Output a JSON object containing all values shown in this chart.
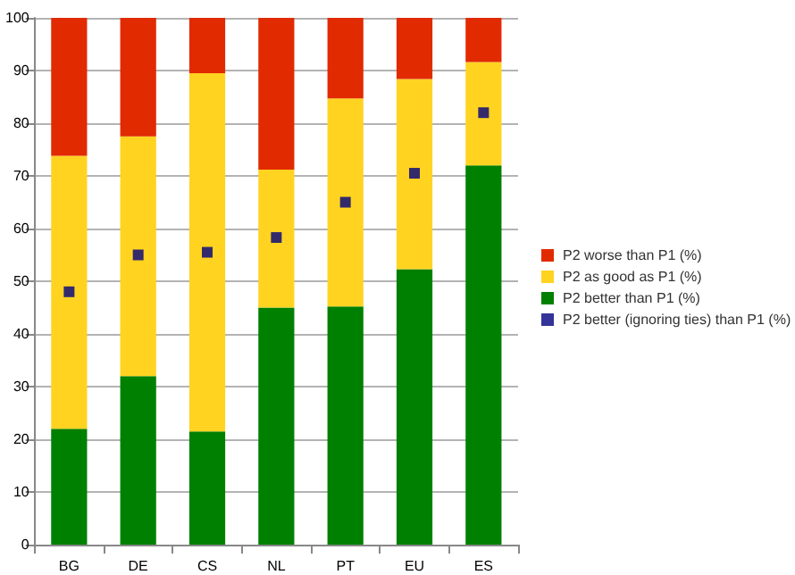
{
  "chart_data": {
    "type": "bar",
    "stacked": true,
    "categories": [
      "BG",
      "DE",
      "CS",
      "NL",
      "PT",
      "EU",
      "ES"
    ],
    "series": [
      {
        "name": "P2 better than P1 (%)",
        "color": "#008000",
        "values": [
          22,
          32,
          21.5,
          45,
          45.2,
          52.3,
          72
        ]
      },
      {
        "name": "P2 as good as P1 (%)",
        "color": "#ffd320",
        "values": [
          51.8,
          45.5,
          68,
          26.2,
          39.5,
          36.1,
          19.6
        ]
      },
      {
        "name": "P2 worse than P1 (%)",
        "color": "#e12a00",
        "values": [
          26.2,
          22.5,
          10.5,
          28.8,
          15.3,
          11.6,
          8.4
        ]
      },
      {
        "name": "P2 better (ignoring ties) than P1 (%)",
        "color": "#000080",
        "type": "scatter",
        "marker": "square",
        "values": [
          48,
          55,
          55.5,
          58.3,
          65,
          70.5,
          82
        ]
      }
    ],
    "ylim": [
      0,
      100
    ],
    "yticks": [
      0,
      10,
      20,
      30,
      40,
      50,
      60,
      70,
      80,
      90,
      100
    ],
    "grid": "y",
    "legend": "right"
  }
}
